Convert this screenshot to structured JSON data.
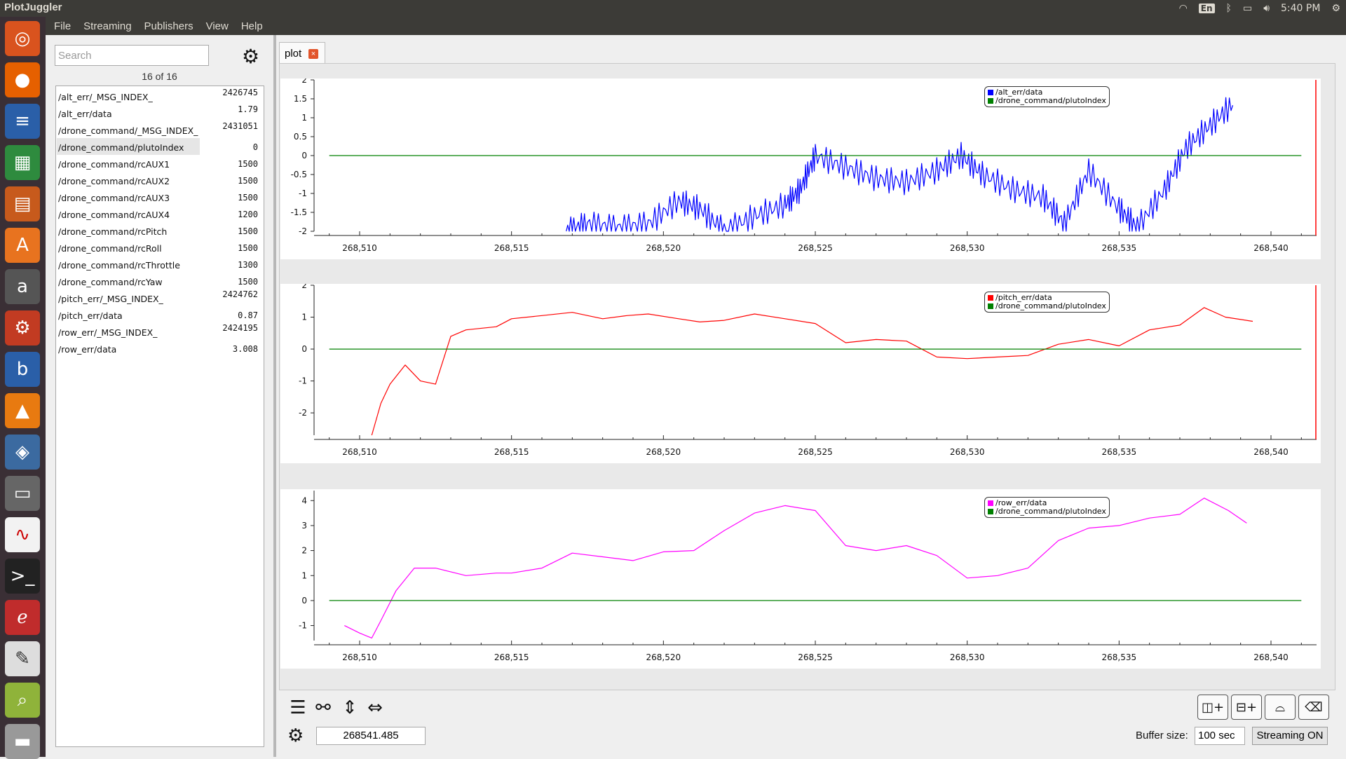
{
  "window": {
    "title": "PlotJuggler"
  },
  "tray": {
    "lang": "En",
    "time": "5:40 PM"
  },
  "menu": [
    "File",
    "Streaming",
    "Publishers",
    "View",
    "Help"
  ],
  "sidebar": {
    "search_placeholder": "Search",
    "count": "16 of 16",
    "curves": [
      {
        "name": "/alt_err/_MSG_INDEX_",
        "value": "2426745"
      },
      {
        "name": "/alt_err/data",
        "value": "1.79"
      },
      {
        "name": "/drone_command/_MSG_INDEX_",
        "value": "2431051"
      },
      {
        "name": "/drone_command/plutoIndex",
        "value": "0"
      },
      {
        "name": "/drone_command/rcAUX1",
        "value": "1500"
      },
      {
        "name": "/drone_command/rcAUX2",
        "value": "1500"
      },
      {
        "name": "/drone_command/rcAUX3",
        "value": "1500"
      },
      {
        "name": "/drone_command/rcAUX4",
        "value": "1200"
      },
      {
        "name": "/drone_command/rcPitch",
        "value": "1500"
      },
      {
        "name": "/drone_command/rcRoll",
        "value": "1500"
      },
      {
        "name": "/drone_command/rcThrottle",
        "value": "1300"
      },
      {
        "name": "/drone_command/rcYaw",
        "value": "1500"
      },
      {
        "name": "/pitch_err/_MSG_INDEX_",
        "value": "2424762"
      },
      {
        "name": "/pitch_err/data",
        "value": "0.87"
      },
      {
        "name": "/row_err/_MSG_INDEX_",
        "value": "2424195"
      },
      {
        "name": "/row_err/data",
        "value": "3.008"
      }
    ]
  },
  "tabs": [
    {
      "label": "plot",
      "close": "×"
    }
  ],
  "bottom": {
    "time_value": "268541.485",
    "buffer_label": "Buffer size:",
    "buffer_value": "100 sec",
    "streaming_label": "Streaming ON"
  },
  "chart_data": [
    {
      "type": "line",
      "x_ticks": [
        "268,510",
        "268,515",
        "268,520",
        "268,525",
        "268,530",
        "268,535",
        "268,540"
      ],
      "ylim": [
        -2,
        2
      ],
      "y_ticks": [
        "2",
        "1.5",
        "1",
        "0.5",
        "0",
        "-0.5",
        "-1",
        "-1.5",
        "-2"
      ],
      "legend": [
        "/alt_err/data",
        "/drone_command/plutoIndex"
      ],
      "colors": [
        "#0000ff",
        "#008000"
      ],
      "series": [
        {
          "name": "/alt_err/data",
          "x": [
            268516.8,
            268517.5,
            268518.5,
            268519.5,
            268520.5,
            268521.2,
            268522,
            268523,
            268524,
            268524.5,
            268525,
            268526,
            268527,
            268528,
            268529,
            268529.8,
            268530.5,
            268531.5,
            268532.5,
            268533.2,
            268534,
            268535,
            268535.6,
            268536.5,
            268537.2,
            268538,
            268538.8
          ],
          "y": [
            -2,
            -1.8,
            -1.9,
            -1.8,
            -1.2,
            -1.4,
            -2,
            -1.6,
            -1.3,
            -0.9,
            0,
            -0.3,
            -0.6,
            -0.7,
            -0.4,
            0,
            -0.5,
            -0.9,
            -1.1,
            -1.8,
            -0.4,
            -1.4,
            -1.9,
            -0.9,
            0.2,
            0.8,
            1.4
          ]
        },
        {
          "name": "/drone_command/plutoIndex",
          "x": [
            268509,
            268541
          ],
          "y": [
            0,
            0
          ]
        }
      ]
    },
    {
      "type": "line",
      "x_ticks": [
        "268,510",
        "268,515",
        "268,520",
        "268,525",
        "268,530",
        "268,535",
        "268,540"
      ],
      "ylim": [
        -2.7,
        2
      ],
      "y_ticks": [
        "2",
        "1",
        "0",
        "-1",
        "-2"
      ],
      "legend": [
        "/pitch_err/data",
        "/drone_command/plutoIndex"
      ],
      "colors": [
        "#ff0000",
        "#008000"
      ],
      "series": [
        {
          "name": "/pitch_err/data",
          "x": [
            268510.4,
            268510.7,
            268511,
            268511.5,
            268512,
            268512.5,
            268513,
            268513.5,
            268514.5,
            268515,
            268516,
            268517,
            268518,
            268518.8,
            268519.5,
            268520.5,
            268521.2,
            268522,
            268523,
            268524,
            268525,
            268526,
            268527,
            268528,
            268529,
            268530,
            268531,
            268532,
            268533,
            268534,
            268535,
            268536,
            268537,
            268537.8,
            268538.5,
            268539.4
          ],
          "y": [
            -2.7,
            -1.7,
            -1.1,
            -0.5,
            -1.0,
            -1.1,
            0.4,
            0.6,
            0.7,
            0.95,
            1.05,
            1.15,
            0.95,
            1.05,
            1.1,
            0.95,
            0.85,
            0.9,
            1.1,
            0.95,
            0.8,
            0.2,
            0.3,
            0.25,
            -0.25,
            -0.3,
            -0.25,
            -0.2,
            0.15,
            0.3,
            0.1,
            0.6,
            0.75,
            1.3,
            1.0,
            0.87
          ]
        },
        {
          "name": "/drone_command/plutoIndex",
          "x": [
            268509,
            268541
          ],
          "y": [
            0,
            0
          ]
        }
      ]
    },
    {
      "type": "line",
      "x_ticks": [
        "268,510",
        "268,515",
        "268,520",
        "268,525",
        "268,530",
        "268,535",
        "268,540"
      ],
      "ylim": [
        -1.6,
        4.4
      ],
      "y_ticks": [
        "4",
        "3",
        "2",
        "1",
        "0",
        "-1"
      ],
      "legend": [
        "/row_err/data",
        "/drone_command/plutoIndex"
      ],
      "colors": [
        "#ff00ff",
        "#008000"
      ],
      "series": [
        {
          "name": "/row_err/data",
          "x": [
            268509.5,
            268510,
            268510.4,
            268510.7,
            268511.2,
            268511.8,
            268512.5,
            268513.5,
            268514.5,
            268515,
            268516,
            268517,
            268518,
            268519,
            268520,
            268521,
            268522,
            268523,
            268524,
            268525,
            268526,
            268527,
            268528,
            268529,
            268530,
            268531,
            268532,
            268533,
            268534,
            268535,
            268536,
            268537,
            268537.8,
            268538.6,
            268539.2
          ],
          "y": [
            -1,
            -1.3,
            -1.5,
            -0.8,
            0.4,
            1.3,
            1.3,
            1.0,
            1.1,
            1.1,
            1.3,
            1.9,
            1.75,
            1.6,
            1.95,
            2.0,
            2.8,
            3.5,
            3.8,
            3.6,
            2.2,
            2.0,
            2.2,
            1.8,
            0.9,
            1.0,
            1.3,
            2.4,
            2.9,
            3.0,
            3.3,
            3.45,
            4.1,
            3.6,
            3.1
          ]
        },
        {
          "name": "/drone_command/plutoIndex",
          "x": [
            268509,
            268541
          ],
          "y": [
            0,
            0
          ]
        }
      ]
    }
  ]
}
